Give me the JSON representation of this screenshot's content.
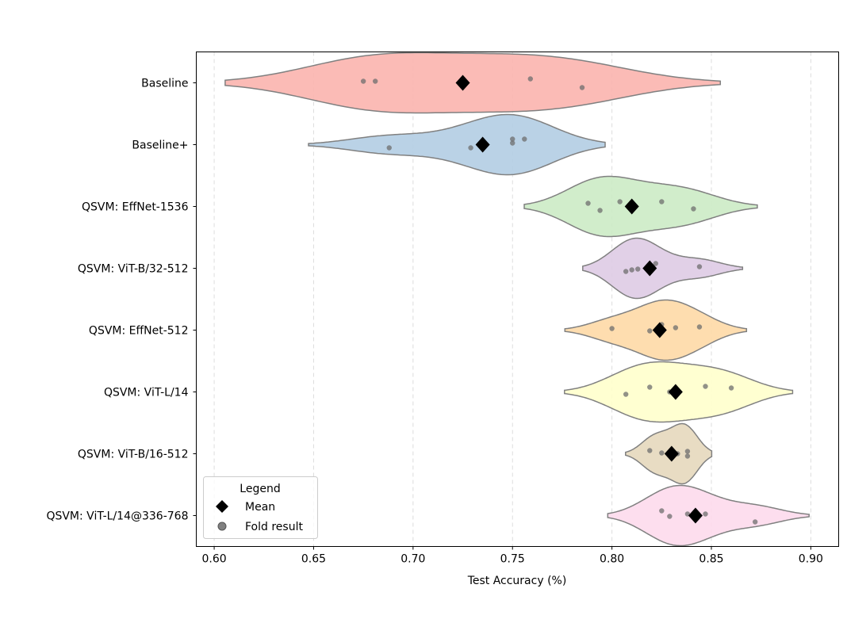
{
  "chart_data": {
    "type": "violin",
    "title": "",
    "xlabel": "Test Accuracy (%)",
    "ylabel": "",
    "xlim": [
      0.591,
      0.914
    ],
    "xticks": [
      "0.60",
      "0.65",
      "0.70",
      "0.75",
      "0.80",
      "0.85",
      "0.90"
    ],
    "grid": "vertical dashed",
    "legend": {
      "title": "Legend",
      "placement": "lower-left",
      "entries": [
        {
          "label": "Mean",
          "marker": "diamond",
          "color": "#000000"
        },
        {
          "label": "Fold result",
          "marker": "circle",
          "color": "#808080"
        }
      ]
    },
    "categories": [
      {
        "label": "Baseline",
        "color": "#fbb4ae",
        "mean": 0.725,
        "folds": [
          0.675,
          0.681,
          0.725,
          0.759,
          0.785
        ]
      },
      {
        "label": "Baseline+",
        "color": "#b3cde3",
        "mean": 0.735,
        "folds": [
          0.688,
          0.729,
          0.75,
          0.75,
          0.756
        ]
      },
      {
        "label": "QSVM: EffNet-1536",
        "color": "#ccebc5",
        "mean": 0.81,
        "folds": [
          0.788,
          0.794,
          0.804,
          0.825,
          0.841
        ]
      },
      {
        "label": "QSVM: ViT-B/32-512",
        "color": "#decbe4",
        "mean": 0.819,
        "folds": [
          0.807,
          0.81,
          0.813,
          0.822,
          0.844
        ]
      },
      {
        "label": "QSVM: EffNet-512",
        "color": "#fed9a6",
        "mean": 0.824,
        "folds": [
          0.8,
          0.819,
          0.825,
          0.832,
          0.844
        ]
      },
      {
        "label": "QSVM: ViT-L/14",
        "color": "#ffffcc",
        "mean": 0.832,
        "folds": [
          0.807,
          0.819,
          0.829,
          0.847,
          0.86
        ]
      },
      {
        "label": "QSVM: ViT-B/16-512",
        "color": "#e5d8bd",
        "mean": 0.83,
        "folds": [
          0.819,
          0.825,
          0.833,
          0.838,
          0.838
        ]
      },
      {
        "label": "QSVM: ViT-L/14@336-768",
        "color": "#fddaec",
        "mean": 0.842,
        "folds": [
          0.825,
          0.829,
          0.838,
          0.847,
          0.872
        ]
      }
    ]
  }
}
